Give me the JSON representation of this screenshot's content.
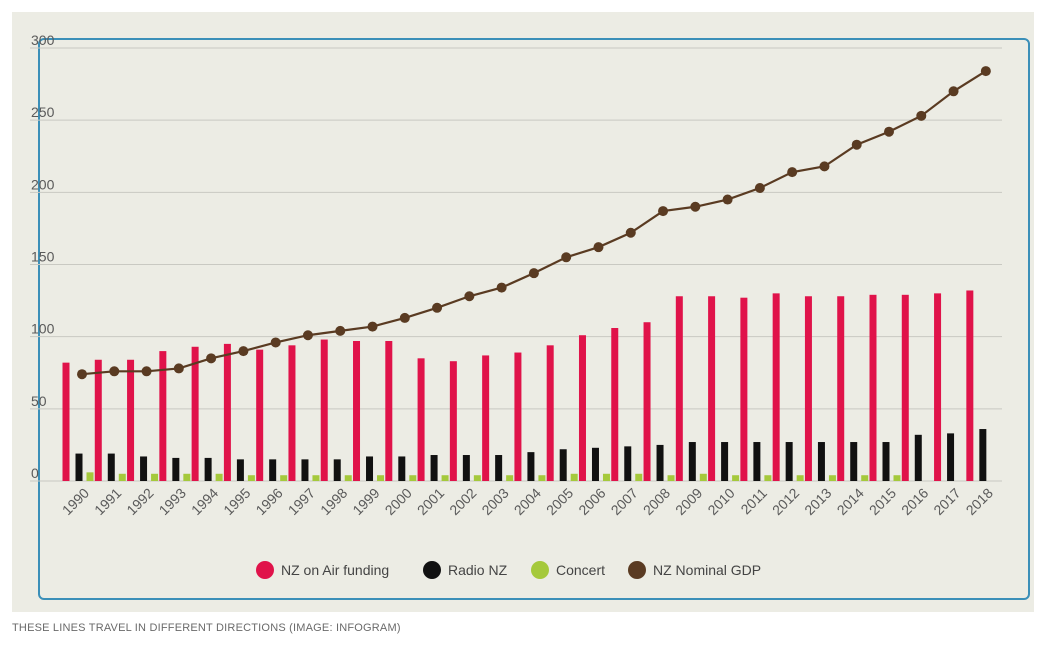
{
  "caption": "THESE LINES TRAVEL IN DIFFERENT DIRECTIONS (IMAGE: INFOGRAM)",
  "colors": {
    "nz_on_air": "#e0134a",
    "radio_nz": "#111111",
    "concert": "#a5c93b",
    "gdp": "#5a3b22",
    "grid": "#c9c9c2",
    "frame": "#3b8fb8",
    "background": "#ececE4"
  },
  "chart_data": {
    "type": "bar",
    "title": "",
    "xlabel": "",
    "ylabel": "",
    "ylim": [
      0,
      300
    ],
    "yticks": [
      0,
      50,
      100,
      150,
      200,
      250,
      300
    ],
    "grid": true,
    "legend_position": "bottom",
    "categories": [
      "1990",
      "1991",
      "1992",
      "1993",
      "1994",
      "1995",
      "1996",
      "1997",
      "1998",
      "1999",
      "2000",
      "2001",
      "2002",
      "2003",
      "2004",
      "2005",
      "2006",
      "2007",
      "2008",
      "2009",
      "2010",
      "2011",
      "2012",
      "2013",
      "2014",
      "2015",
      "2016",
      "2017",
      "2018"
    ],
    "series": [
      {
        "name": "NZ on Air funding",
        "type": "bar",
        "values": [
          82,
          84,
          84,
          90,
          93,
          95,
          91,
          94,
          98,
          97,
          97,
          85,
          83,
          87,
          89,
          94,
          101,
          106,
          110,
          128,
          128,
          127,
          130,
          128,
          128,
          129,
          129,
          130,
          132
        ]
      },
      {
        "name": "Radio NZ",
        "type": "bar",
        "values": [
          19,
          19,
          17,
          16,
          16,
          15,
          15,
          15,
          15,
          17,
          17,
          18,
          18,
          18,
          20,
          22,
          23,
          24,
          25,
          27,
          27,
          27,
          27,
          27,
          27,
          27,
          32,
          33,
          36
        ]
      },
      {
        "name": "Concert",
        "type": "bar",
        "values": [
          6,
          5,
          5,
          5,
          5,
          4,
          4,
          4,
          4,
          4,
          4,
          4,
          4,
          4,
          4,
          5,
          5,
          5,
          4,
          5,
          4,
          4,
          4,
          4,
          4,
          4,
          0,
          0,
          0
        ]
      },
      {
        "name": "NZ Nominal GDP",
        "type": "line",
        "values": [
          74,
          76,
          76,
          78,
          85,
          90,
          96,
          101,
          104,
          107,
          113,
          120,
          128,
          134,
          144,
          155,
          162,
          172,
          187,
          190,
          195,
          203,
          214,
          218,
          233,
          242,
          253,
          270,
          284
        ]
      }
    ]
  }
}
